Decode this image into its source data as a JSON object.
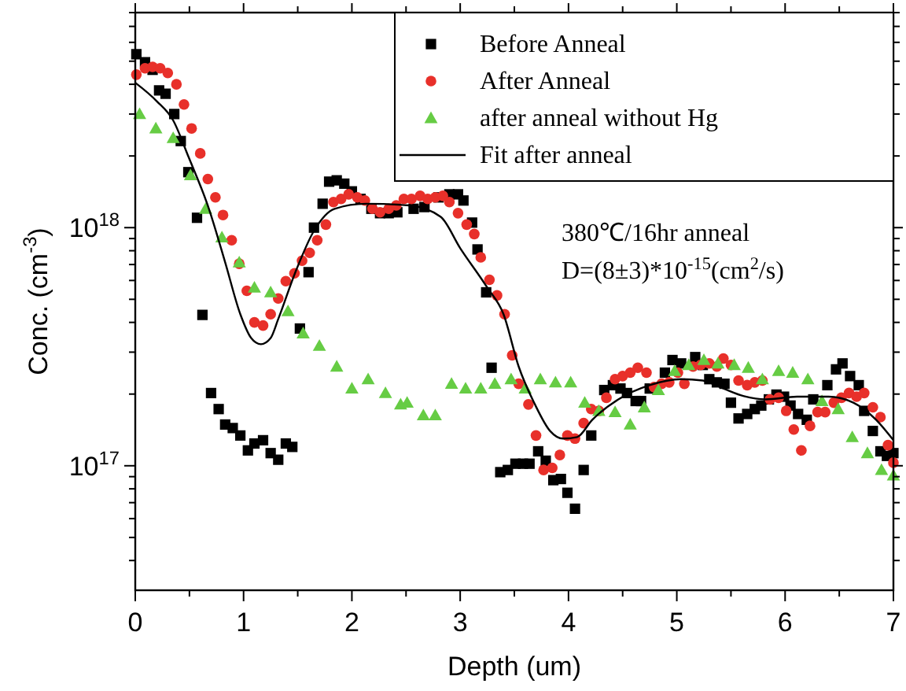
{
  "chart_data": {
    "type": "scatter",
    "xlabel": "Depth (um)",
    "ylabel": "Conc. (cm$^{-3}$)",
    "log": "y",
    "legend": "top right",
    "xlim": [
      0,
      7
    ],
    "xticks": [
      0,
      {
        "value": 0.5,
        "label": null
      },
      1,
      {
        "value": 1.5,
        "label": null
      },
      2,
      {
        "value": 2.5,
        "label": null
      },
      3,
      {
        "value": 3.5,
        "label": null
      },
      4,
      {
        "value": 4.5,
        "label": null
      },
      5,
      {
        "value": 5.5,
        "label": null
      },
      6,
      {
        "value": 6.5,
        "label": null
      },
      7
    ],
    "ylim": [
      3e+16,
      8e+18
    ],
    "yticks": [
      {
        "value": 4e+16,
        "label": null
      },
      {
        "value": 5e+16,
        "label": null
      },
      {
        "value": 6e+16,
        "label": null
      },
      {
        "value": 7e+16,
        "label": null
      },
      {
        "value": 8e+16,
        "label": null
      },
      {
        "value": 9e+16,
        "label": null
      },
      {
        "value": 1e+17,
        "label": "10$^{17}$"
      },
      {
        "value": 2e+17,
        "label": null
      },
      {
        "value": 3e+17,
        "label": null
      },
      {
        "value": 4e+17,
        "label": null
      },
      {
        "value": 5e+17,
        "label": null
      },
      {
        "value": 6e+17,
        "label": null
      },
      {
        "value": 7e+17,
        "label": null
      },
      {
        "value": 8e+17,
        "label": null
      },
      {
        "value": 9e+17,
        "label": null
      },
      {
        "value": 1e+18,
        "label": "10$^{18}$"
      },
      {
        "value": 2e+18,
        "label": null
      },
      {
        "value": 3e+18,
        "label": null
      },
      {
        "value": 4e+18,
        "label": null
      },
      {
        "value": 5e+18,
        "label": null
      },
      {
        "value": 6e+18,
        "label": null
      },
      {
        "value": 7e+18,
        "label": null
      },
      {
        "value": 8e+18,
        "label": null
      }
    ],
    "annotations": [
      "380℃/16hr anneal",
      "D=(8±3)*10$^{-15}$(cm$^{2}$/s)"
    ],
    "series": [
      {
        "name": "Before Anneal",
        "marker": "square",
        "color": "#000000",
        "x": [
          0.01,
          0.09,
          0.16,
          0.22,
          0.28,
          0.36,
          0.42,
          0.49,
          0.57,
          0.62,
          0.7,
          0.77,
          0.83,
          0.9,
          0.97,
          1.04,
          1.1,
          1.18,
          1.25,
          1.32,
          1.39,
          1.45,
          1.52,
          1.6,
          1.65,
          1.73,
          1.79,
          1.86,
          1.93,
          2.0,
          2.08,
          2.18,
          2.26,
          2.34,
          2.42,
          2.57,
          2.67,
          2.8,
          2.9,
          2.98,
          3.03,
          3.11,
          3.16,
          3.24,
          3.29,
          3.37,
          3.44,
          3.51,
          3.58,
          3.64,
          3.72,
          3.79,
          3.86,
          3.93,
          3.99,
          4.06,
          4.14,
          4.21,
          4.33,
          4.41,
          4.48,
          4.54,
          4.62,
          4.67,
          4.75,
          4.89,
          4.96,
          5.04,
          5.17,
          5.24,
          5.3,
          5.37,
          5.44,
          5.5,
          5.57,
          5.65,
          5.72,
          5.78,
          5.85,
          5.92,
          5.99,
          6.05,
          6.12,
          6.2,
          6.26,
          6.39,
          6.47,
          6.53,
          6.6,
          6.68,
          6.73,
          6.81,
          6.88,
          6.94,
          7.0
        ],
        "values": [
          5.35e+18,
          4.95e+18,
          4.6e+18,
          3.77e+18,
          3.65e+18,
          3e+18,
          2.31e+18,
          1.71e+18,
          1.1e+18,
          4.3e+17,
          2.02e+17,
          1.73e+17,
          1.49e+17,
          1.44e+17,
          1.34e+17,
          1.16e+17,
          1.24e+17,
          1.28e+17,
          1.13e+17,
          1.06e+17,
          1.24e+17,
          1.2e+17,
          3.77e+17,
          6.5e+17,
          1e+18,
          1.26e+18,
          1.56e+18,
          1.58e+18,
          1.53e+18,
          1.42e+18,
          1.32e+18,
          1.2e+18,
          1.15e+18,
          1.15e+18,
          1.16e+18,
          1.2e+18,
          1.22e+18,
          1.34e+18,
          1.38e+18,
          1.38e+18,
          1.3e+18,
          1.05e+18,
          8.1e+17,
          5.35e+17,
          2.58e+17,
          9.4e+16,
          9.6e+16,
          1.02e+17,
          1.02e+17,
          1.02e+17,
          1.15e+17,
          1.05e+17,
          8.7e+16,
          8.8e+16,
          7.7e+16,
          6.6e+16,
          9.6e+16,
          1.34e+17,
          2.08e+17,
          2.18e+17,
          2.11e+17,
          2.02e+17,
          1.87e+17,
          1.87e+17,
          2.11e+17,
          2.46e+17,
          2.78e+17,
          2.69e+17,
          2.86e+17,
          2.65e+17,
          2.31e+17,
          2.24e+17,
          2.21e+17,
          1.84e+17,
          1.58e+17,
          1.65e+17,
          1.73e+17,
          1.79e+17,
          1.9e+17,
          1.99e+17,
          1.95e+17,
          1.79e+17,
          1.65e+17,
          1.56e+17,
          1.9e+17,
          2.18e+17,
          2.54e+17,
          2.69e+17,
          2.38e+17,
          2.18e+17,
          1.7e+17,
          1.4e+17,
          1.15e+17,
          1.1e+17,
          1.13e+17
        ]
      },
      {
        "name": "After Anneal",
        "marker": "circle",
        "color": "#e8302a",
        "x": [
          0.01,
          0.09,
          0.16,
          0.23,
          0.3,
          0.38,
          0.45,
          0.52,
          0.6,
          0.67,
          0.74,
          0.81,
          0.89,
          0.96,
          1.03,
          1.1,
          1.18,
          1.25,
          1.32,
          1.39,
          1.47,
          1.54,
          1.61,
          1.68,
          1.76,
          1.83,
          1.9,
          1.97,
          2.05,
          2.12,
          2.19,
          2.26,
          2.34,
          2.41,
          2.48,
          2.55,
          2.63,
          2.7,
          2.77,
          2.84,
          2.9,
          2.98,
          3.06,
          3.13,
          3.19,
          3.27,
          3.34,
          3.41,
          3.48,
          3.54,
          3.63,
          3.7,
          3.77,
          3.85,
          3.92,
          3.99,
          4.06,
          4.14,
          4.21,
          4.28,
          4.35,
          4.43,
          4.5,
          4.57,
          4.64,
          4.72,
          4.79,
          4.86,
          4.93,
          5.01,
          5.07,
          5.15,
          5.22,
          5.3,
          5.37,
          5.43,
          5.5,
          5.57,
          5.65,
          5.72,
          5.79,
          5.86,
          5.94,
          6.01,
          6.08,
          6.15,
          6.23,
          6.3,
          6.37,
          6.45,
          6.52,
          6.59,
          6.66,
          6.73,
          6.81,
          6.88,
          6.95,
          7.0
        ],
        "values": [
          4.39e+18,
          4.67e+18,
          4.73e+18,
          4.67e+18,
          4.46e+18,
          4e+18,
          3.29e+18,
          2.61e+18,
          2.05e+18,
          1.6e+18,
          1.34e+18,
          1.13e+18,
          8.85e+17,
          7.05e+17,
          5.43e+17,
          4e+17,
          3.88e+17,
          4.33e+17,
          5.04e+17,
          5.96e+17,
          6.43e+17,
          7.26e+17,
          7.84e+17,
          8.85e+17,
          1.03e+18,
          1.28e+18,
          1.32e+18,
          1.38e+18,
          1.34e+18,
          1.3e+18,
          1.2e+18,
          1.16e+18,
          1.2e+18,
          1.24e+18,
          1.32e+18,
          1.32e+18,
          1.36e+18,
          1.32e+18,
          1.34e+18,
          1.36e+18,
          1.28e+18,
          1.15e+18,
          1.03e+18,
          9.4e+17,
          7.5e+17,
          6.04e+17,
          5.19e+17,
          4.33e+17,
          2.91e+17,
          2.21e+17,
          1.81e+17,
          1.34e+17,
          9.6e+16,
          9.8e+16,
          1.11e+17,
          1.34e+17,
          1.3e+17,
          1.51e+17,
          1.73e+17,
          1.7e+17,
          1.93e+17,
          2.31e+17,
          2.38e+17,
          2.46e+17,
          2.58e+17,
          2.46e+17,
          2.14e+17,
          2.21e+17,
          2.24e+17,
          2.46e+17,
          2.21e+17,
          2.61e+17,
          2.65e+17,
          2.69e+17,
          2.61e+17,
          2.82e+17,
          2.65e+17,
          2.28e+17,
          2.18e+17,
          2.24e+17,
          2.28e+17,
          1.9e+17,
          1.93e+17,
          1.7e+17,
          1.42e+17,
          1.16e+17,
          1.47e+17,
          1.68e+17,
          1.68e+17,
          1.84e+17,
          1.93e+17,
          2.02e+17,
          1.95e+17,
          2.02e+17,
          1.76e+17,
          1.6e+17,
          1.22e+17,
          1.03e+17
        ]
      },
      {
        "name": "after anneal without Hg",
        "marker": "triangle",
        "color": "#66cc44",
        "x": [
          0.04,
          0.19,
          0.35,
          0.51,
          0.65,
          0.8,
          0.96,
          1.1,
          1.25,
          1.41,
          1.55,
          1.7,
          1.86,
          2.0,
          2.15,
          2.31,
          2.45,
          2.51,
          2.66,
          2.77,
          2.92,
          3.05,
          3.19,
          3.32,
          3.47,
          3.6,
          3.74,
          3.88,
          4.02,
          4.15,
          4.28,
          4.43,
          4.57,
          4.7,
          4.83,
          4.98,
          5.11,
          5.25,
          5.38,
          5.53,
          5.66,
          5.79,
          5.94,
          6.07,
          6.21,
          6.34,
          6.49,
          6.62,
          6.76,
          6.89,
          7.0
        ],
        "values": [
          3e+18,
          2.61e+18,
          2.38e+18,
          1.66e+18,
          1.2e+18,
          9.1e+17,
          7.15e+17,
          5.6e+17,
          5.35e+17,
          4.46e+17,
          3.6e+17,
          3.19e+17,
          2.61e+17,
          2.11e+17,
          2.31e+17,
          2.02e+17,
          1.81e+17,
          1.84e+17,
          1.63e+17,
          1.63e+17,
          2.21e+17,
          2.11e+17,
          2.11e+17,
          2.21e+17,
          2.31e+17,
          2.11e+17,
          2.31e+17,
          2.24e+17,
          2.24e+17,
          1.84e+17,
          1.7e+17,
          1.68e+17,
          1.49e+17,
          1.76e+17,
          2.08e+17,
          2.5e+17,
          2.65e+17,
          2.78e+17,
          2.69e+17,
          2.65e+17,
          2.58e+17,
          2.31e+17,
          2.5e+17,
          2.46e+17,
          2.31e+17,
          1.87e+17,
          1.73e+17,
          1.32e+17,
          1.13e+17,
          9.6e+16,
          9.1e+16
        ]
      },
      {
        "name": "Fit after anneal",
        "type": "line",
        "marker": "none",
        "line_style": "solid",
        "color": "#000000",
        "x": [
          0,
          0.2,
          0.35,
          0.49,
          0.68,
          0.83,
          0.97,
          1.07,
          1.16,
          1.25,
          1.32,
          1.48,
          1.65,
          1.84,
          2.13,
          2.53,
          2.82,
          3.0,
          3.25,
          3.4,
          3.54,
          3.69,
          3.83,
          3.95,
          4.08,
          4.22,
          4.46,
          4.75,
          5.04,
          5.24,
          5.43,
          5.62,
          5.82,
          6.11,
          6.4,
          6.63,
          6.84,
          7.0
        ],
        "values": [
          4.06e+18,
          3.39e+18,
          2.82e+18,
          1.99e+18,
          1.2e+18,
          7.15e+17,
          4.33e+17,
          3.44e+17,
          3.24e+17,
          3.44e+17,
          4.13e+17,
          6.53e+17,
          9.7e+17,
          1.2e+18,
          1.26e+18,
          1.24e+18,
          1.11e+18,
          8.2e+17,
          5.6e+17,
          4.33e+17,
          2.61e+17,
          1.81e+17,
          1.4e+17,
          1.3e+17,
          1.32e+17,
          1.56e+17,
          1.9e+17,
          2.18e+17,
          2.31e+17,
          2.28e+17,
          2.11e+17,
          1.96e+17,
          1.9e+17,
          1.95e+17,
          1.95e+17,
          1.84e+17,
          1.56e+17,
          1.28e+17
        ]
      }
    ]
  }
}
